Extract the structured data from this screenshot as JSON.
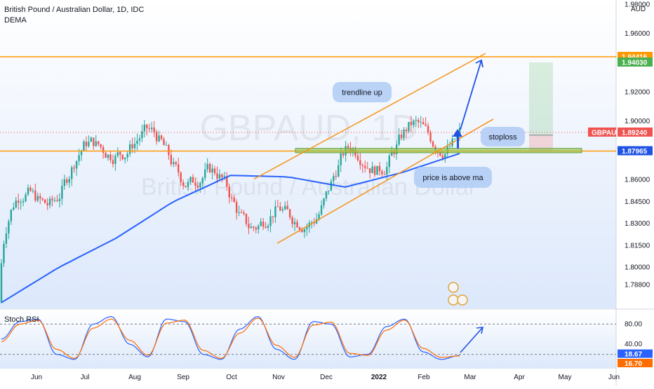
{
  "header": {
    "symbol_line": "British Pound / Australian Dollar, 1D, IDC",
    "indicator": "DEMA"
  },
  "watermark": {
    "ticker": "GBPAUD, 1D",
    "name": "British Pound / Australian Dollar"
  },
  "currency_label": "AUD",
  "oscillator_title": "Stoch RSI",
  "colors": {
    "up": "#26a69a",
    "down": "#ef5350",
    "ma": "#2962ff",
    "trend": "#f7931a",
    "support_box": "#8bc34a",
    "stoch_k": "#2962ff",
    "stoch_d": "#ff6d00",
    "arrow": "#1e53e5"
  },
  "chart_data": [
    {
      "type": "candlestick",
      "title": "GBPAUD, 1D",
      "x_labels": [
        "Jun",
        "Jul",
        "Aug",
        "Sep",
        "Oct",
        "Nov",
        "Dec",
        "2022",
        "Feb",
        "Mar",
        "Apr",
        "May",
        "Jun"
      ],
      "y_ticks": [
        "1.78800",
        "1.80000",
        "1.81500",
        "1.83000",
        "1.84500",
        "1.86000",
        "1.87965",
        "1.90000",
        "1.92000",
        "1.94030",
        "1.94416",
        "1.96000",
        "1.98000"
      ],
      "ylim": [
        1.772,
        1.983
      ],
      "ohlc_trend": {
        "months": [
          "2021-06",
          "2021-07",
          "2021-08",
          "2021-09",
          "2021-10",
          "2021-11",
          "2021-12",
          "2022-01",
          "2022-02"
        ],
        "approx_close": [
          1.83,
          1.86,
          1.89,
          1.875,
          1.845,
          1.825,
          1.87,
          1.885,
          1.895
        ]
      },
      "horizontal_levels": [
        {
          "value": 1.94416,
          "label": "1.94416",
          "color": "#ff9800"
        },
        {
          "value": 1.87965,
          "label": "1.87965",
          "color": "#ff9800"
        }
      ],
      "last_price": {
        "label": "GBPAUD",
        "value": "1.89240"
      },
      "target_price": {
        "value": "1.94030"
      },
      "moving_average": {
        "name": "DEMA",
        "approx_values": [
          1.776,
          1.8,
          1.82,
          1.845,
          1.863,
          1.862,
          1.855,
          1.865,
          1.878
        ]
      },
      "annotations": [
        "trendline up",
        "stoploss",
        "price is above ma"
      ]
    },
    {
      "type": "line",
      "title": "Stoch RSI",
      "y_ticks": [
        "40.00",
        "80.00"
      ],
      "ylim": [
        0,
        100
      ],
      "last_values": {
        "k": "18.67",
        "d": "16.70"
      },
      "series": [
        {
          "name": "K",
          "approx_values": [
            50,
            85,
            90,
            20,
            10,
            80,
            95,
            40,
            15,
            90,
            85,
            20,
            10,
            70,
            95,
            30,
            10,
            85,
            80,
            15,
            20,
            75,
            90,
            25,
            10,
            18
          ]
        },
        {
          "name": "D",
          "approx_values": [
            45,
            80,
            88,
            30,
            12,
            72,
            90,
            48,
            18,
            82,
            88,
            28,
            12,
            62,
            92,
            38,
            14,
            78,
            84,
            22,
            18,
            68,
            88,
            32,
            14,
            17
          ]
        }
      ]
    }
  ]
}
